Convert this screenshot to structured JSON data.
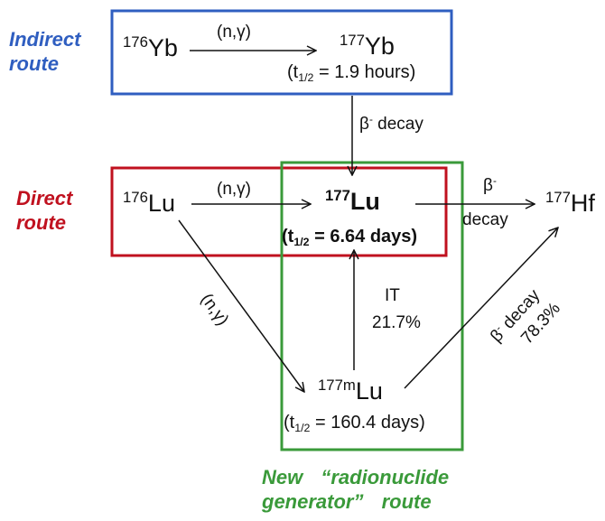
{
  "routes": {
    "indirect": {
      "label": "Indirect route",
      "color": "#2f5ec0"
    },
    "direct": {
      "label": "Direct route",
      "color": "#c0111f"
    },
    "generator": {
      "label": "New “radionuclide generator” route",
      "color": "#3a9a3a"
    }
  },
  "nuclides": {
    "yb176": {
      "mass": "176",
      "symbol": "Yb"
    },
    "yb177": {
      "mass": "177",
      "symbol": "Yb",
      "half_life": "(t1/2 = 1.9 hours)"
    },
    "lu176": {
      "mass": "176",
      "symbol": "Lu"
    },
    "lu177": {
      "mass": "177",
      "symbol": "Lu",
      "half_life": "(t1/2 = 6.64 days)"
    },
    "lu177m": {
      "mass": "177m",
      "symbol": "Lu",
      "half_life": "(t1/2 = 160.4 days)"
    },
    "hf177": {
      "mass": "177",
      "symbol": "Hf"
    }
  },
  "reactions": {
    "yb_capture": "(n,γ)",
    "lu_capture": "(n,γ)",
    "lu_to_meta": "(n,γ)",
    "yb_decay": "β- decay",
    "lu_decay_beta": "β-",
    "lu_decay_word": "decay",
    "it_label": "IT",
    "it_percent": "21.7%",
    "meta_decay": "β- decay",
    "meta_decay_percent": "78.3%"
  }
}
